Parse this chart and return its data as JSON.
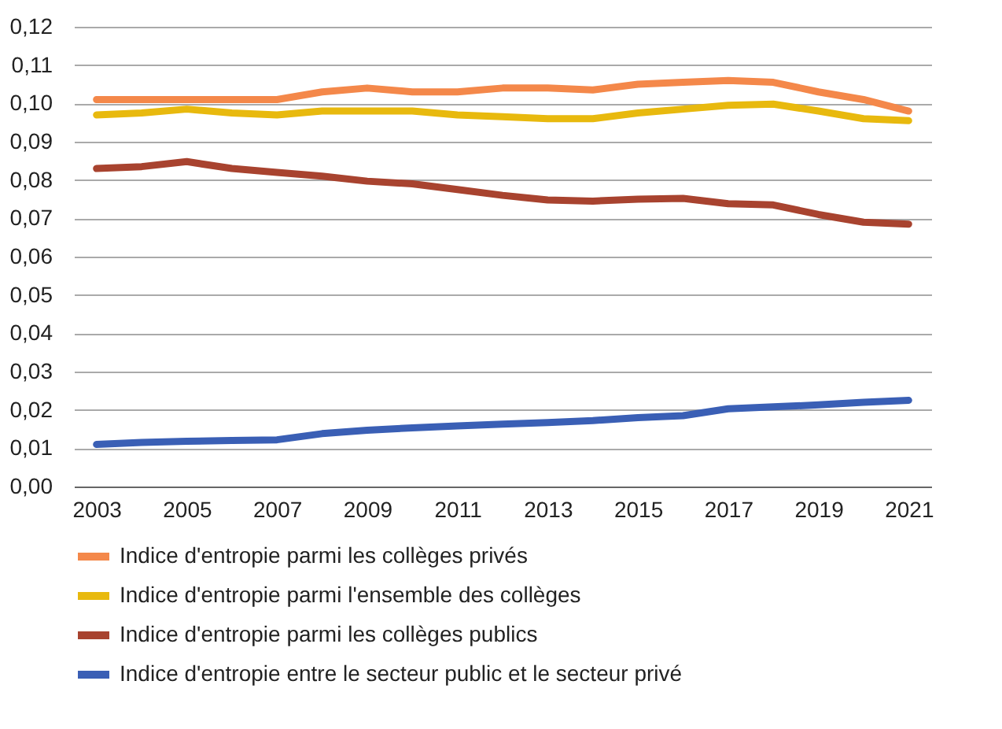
{
  "chart_data": {
    "type": "line",
    "categories": [
      "2003",
      null,
      "2005",
      null,
      "2007",
      null,
      "2009",
      null,
      "2011",
      null,
      "2013",
      null,
      "2015",
      null,
      "2017",
      null,
      "2019",
      null,
      "2021"
    ],
    "series": [
      {
        "name": "Indice d'entropie parmi les collèges privés",
        "color": "#f4884a",
        "values": [
          0.101,
          0.101,
          0.101,
          0.101,
          0.101,
          0.103,
          0.104,
          0.103,
          0.103,
          0.104,
          0.104,
          0.1035,
          0.105,
          0.1055,
          0.106,
          0.1055,
          0.103,
          0.101,
          0.098
        ]
      },
      {
        "name": "Indice d'entropie parmi l'ensemble des collèges",
        "color": "#e8b90e",
        "values": [
          0.097,
          0.0975,
          0.0985,
          0.0975,
          0.097,
          0.098,
          0.098,
          0.098,
          0.097,
          0.0965,
          0.096,
          0.096,
          0.0975,
          0.0985,
          0.0995,
          0.0998,
          0.098,
          0.096,
          0.0955
        ]
      },
      {
        "name": "Indice d'entropie parmi les collèges publics",
        "color": "#a8432f",
        "values": [
          0.083,
          0.0835,
          0.0848,
          0.083,
          0.082,
          0.081,
          0.0797,
          0.079,
          0.0775,
          0.076,
          0.0748,
          0.0745,
          0.075,
          0.0752,
          0.0738,
          0.0735,
          0.071,
          0.069,
          0.0685
        ]
      },
      {
        "name": "Indice d'entropie entre le secteur public et le secteur privé",
        "color": "#3a5fb5",
        "values": [
          0.011,
          0.0115,
          0.0118,
          0.012,
          0.0122,
          0.0138,
          0.0147,
          0.0153,
          0.0158,
          0.0163,
          0.0167,
          0.0172,
          0.018,
          0.0185,
          0.0203,
          0.0208,
          0.0213,
          0.022,
          0.0225
        ]
      }
    ],
    "ylim": [
      0,
      0.12
    ],
    "yticks": [
      {
        "value": 0,
        "label": "0,00"
      },
      {
        "value": 0.01,
        "label": "0,01"
      },
      {
        "value": 0.02,
        "label": "0,02"
      },
      {
        "value": 0.03,
        "label": "0,03"
      },
      {
        "value": 0.04,
        "label": "0,04"
      },
      {
        "value": 0.05,
        "label": "0,05"
      },
      {
        "value": 0.06,
        "label": "0,06"
      },
      {
        "value": 0.07,
        "label": "0,07"
      },
      {
        "value": 0.08,
        "label": "0,08"
      },
      {
        "value": 0.09,
        "label": "0,09"
      },
      {
        "value": 0.1,
        "label": "0,10"
      },
      {
        "value": 0.11,
        "label": "0,11"
      },
      {
        "value": 0.12,
        "label": "0,12"
      }
    ],
    "grid": "y",
    "legend": "bottom",
    "marker": "none",
    "line_style": "solid"
  }
}
